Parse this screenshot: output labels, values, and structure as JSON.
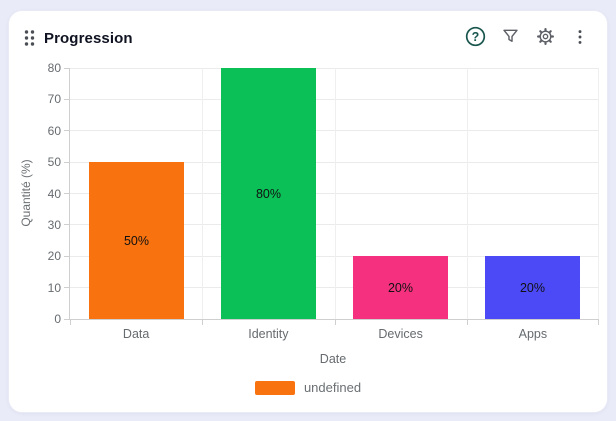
{
  "page": {
    "background": "#e9ebf8"
  },
  "header": {
    "title": "Progression",
    "actions": [
      {
        "name": "help",
        "icon": "question-circle-icon",
        "color": "#19564e"
      },
      {
        "name": "filter",
        "icon": "funnel-icon",
        "color": "#5c5f66"
      },
      {
        "name": "settings",
        "icon": "gear-icon",
        "color": "#5c5f66"
      },
      {
        "name": "more",
        "icon": "kebab-menu-icon",
        "color": "#5c5f66"
      }
    ]
  },
  "chart_data": {
    "type": "bar",
    "title": "Progression",
    "categories": [
      "Data",
      "Identity",
      "Devices",
      "Apps"
    ],
    "values": [
      50,
      80,
      20,
      20
    ],
    "bar_labels": [
      "50%",
      "80%",
      "20%",
      "20%"
    ],
    "bar_colors": [
      "#f8720f",
      "#0bc157",
      "#f5317f",
      "#4c49f6"
    ],
    "xlabel": "Date",
    "ylabel": "Quantité (%)",
    "ylim": [
      0,
      80
    ],
    "yticks": [
      0,
      10,
      20,
      30,
      40,
      50,
      60,
      70,
      80
    ],
    "grid": true,
    "legend": [
      {
        "label": "undefined",
        "color": "#f8720f"
      }
    ],
    "legend_position": "bottom"
  }
}
